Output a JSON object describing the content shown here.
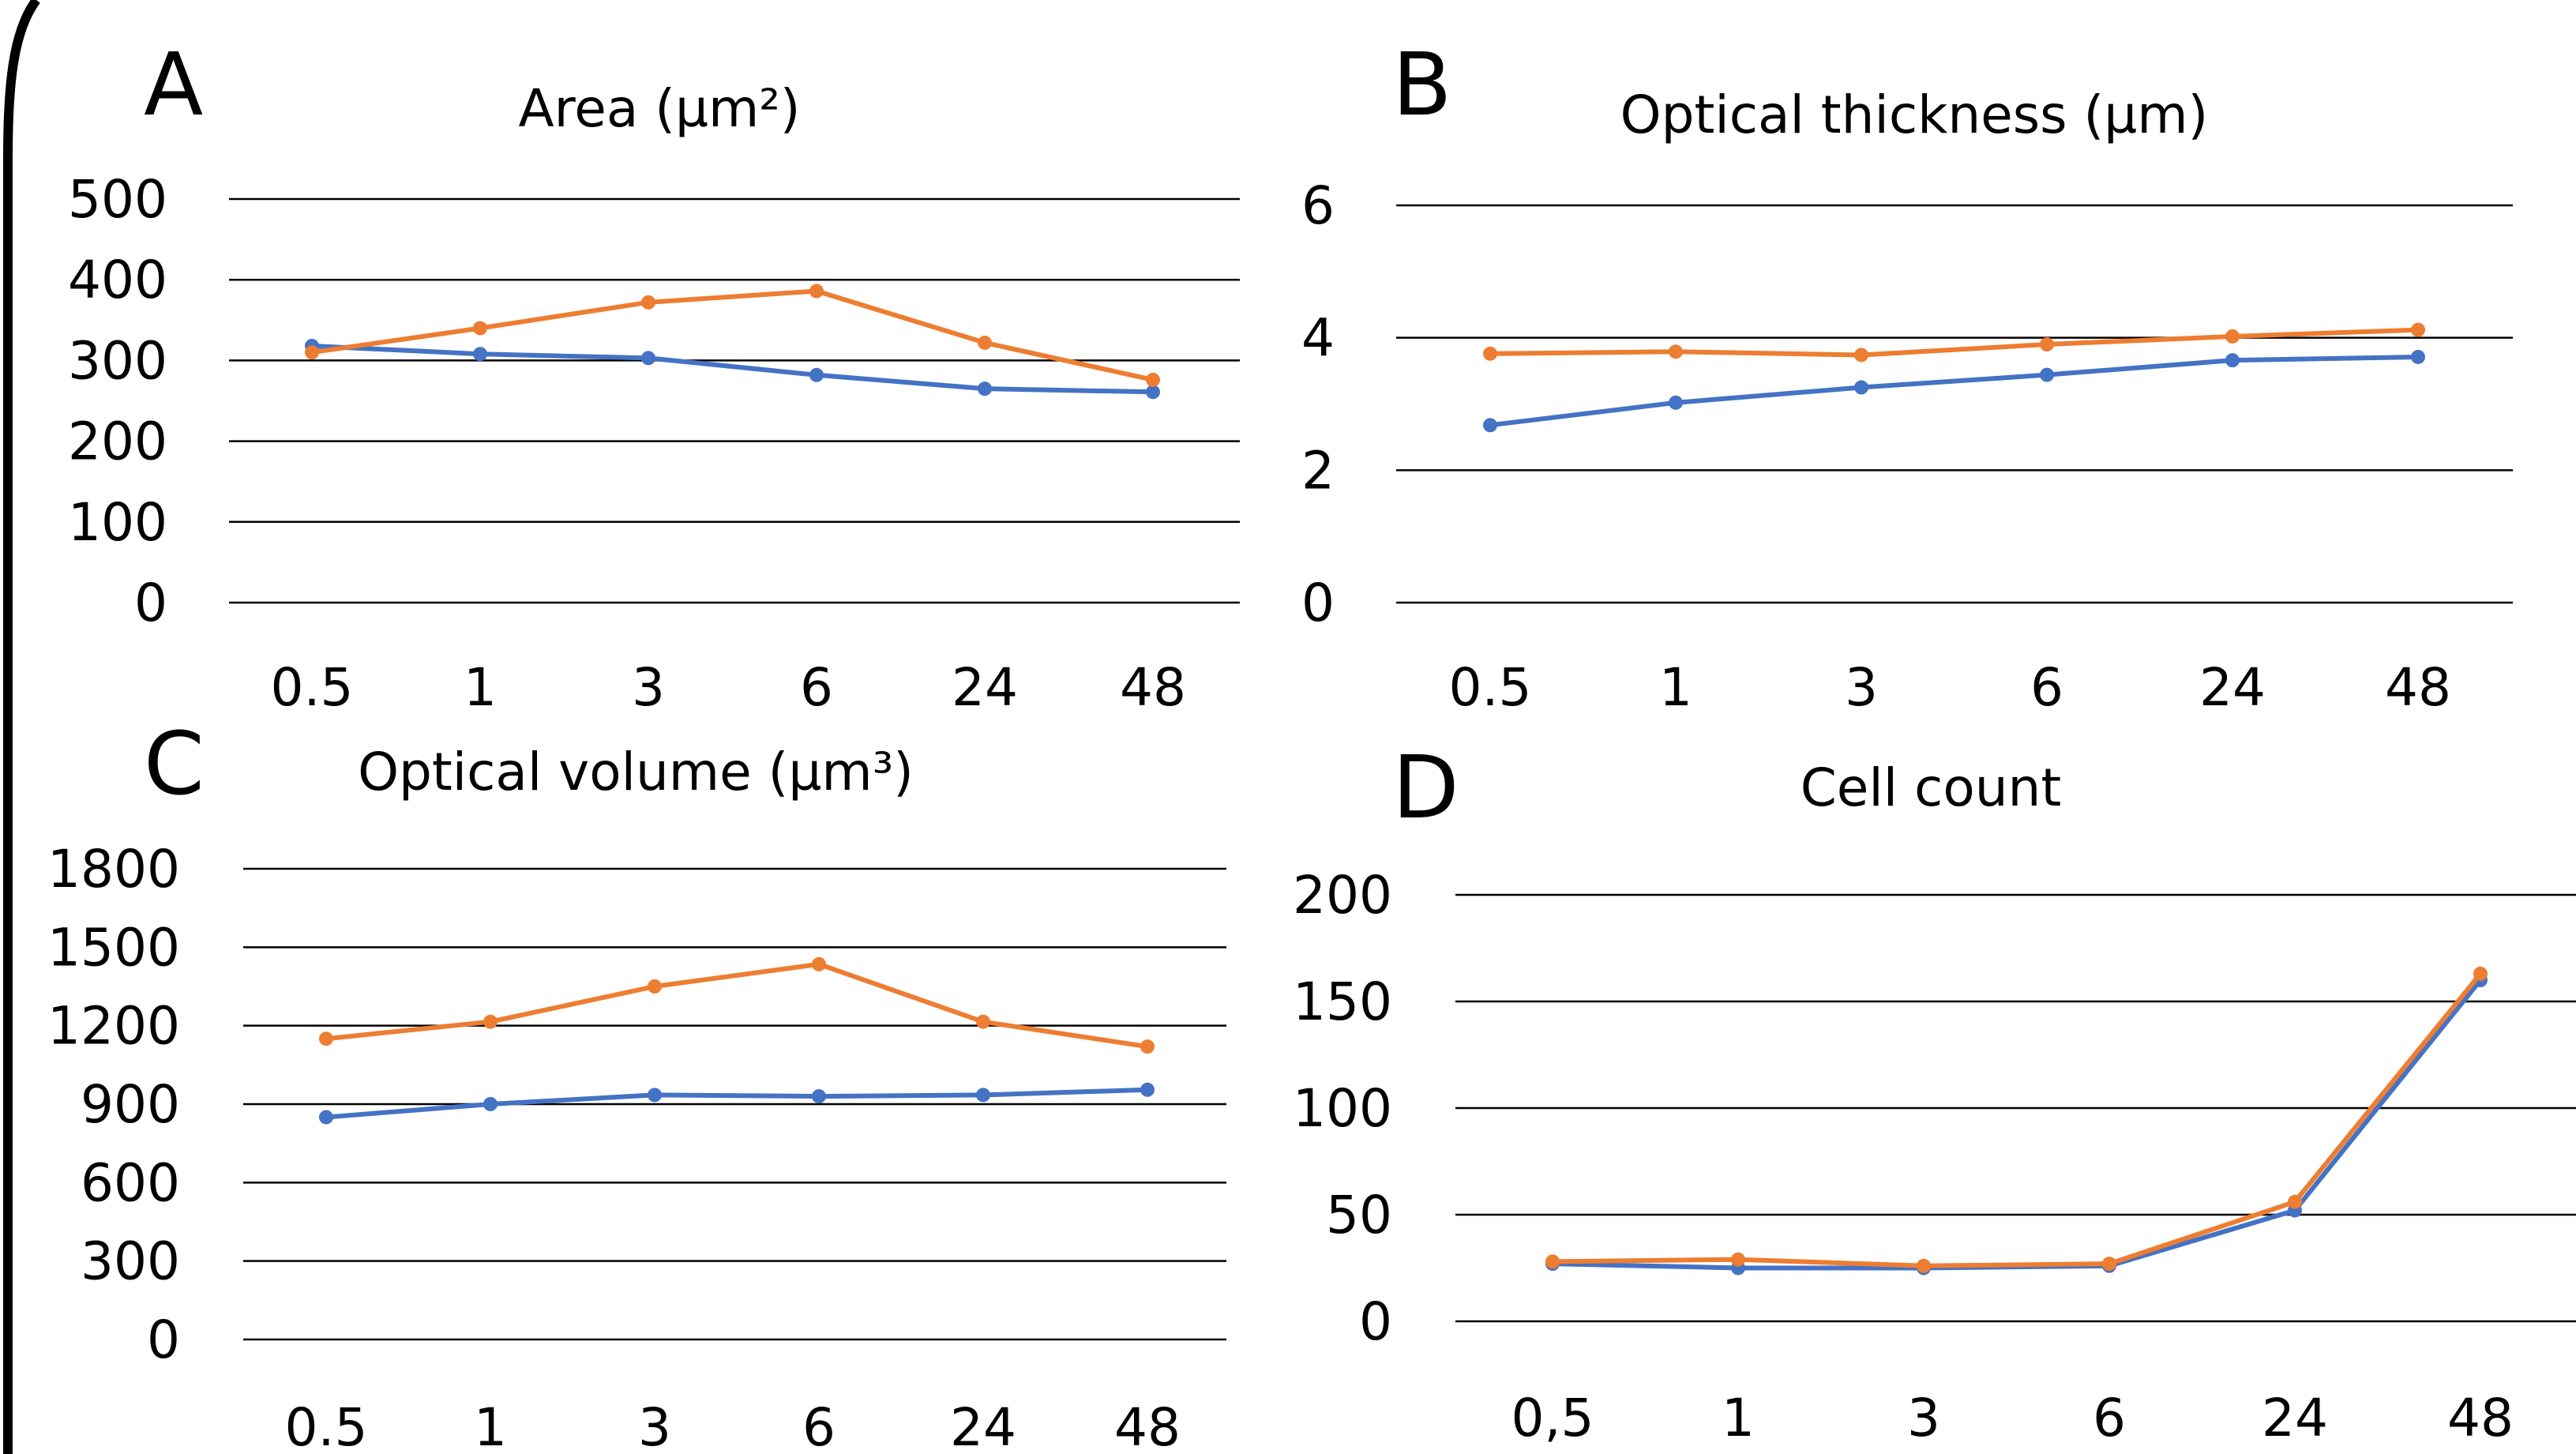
{
  "colors": {
    "series1": "#4472C4",
    "series2": "#ED7D31",
    "gridline": "#000000"
  },
  "chart_data": [
    {
      "panel": "A",
      "type": "line",
      "title": "Area (µm²)",
      "categories": [
        "0.5",
        "1",
        "3",
        "6",
        "24",
        "48"
      ],
      "ylim": [
        0,
        500
      ],
      "yticks": [
        "0",
        "100",
        "200",
        "300",
        "400",
        "500"
      ],
      "grid": true,
      "legend": "none",
      "series": [
        {
          "values": [
            318,
            308,
            303,
            282,
            265,
            261
          ]
        },
        {
          "values": [
            310,
            340,
            372,
            386,
            322,
            276
          ]
        }
      ]
    },
    {
      "panel": "B",
      "type": "line",
      "title": "Optical thickness (µm)",
      "categories": [
        "0.5",
        "1",
        "3",
        "6",
        "24",
        "48"
      ],
      "ylim": [
        0,
        6
      ],
      "yticks": [
        "0",
        "2",
        "4",
        "6"
      ],
      "grid": true,
      "legend": "none",
      "series": [
        {
          "values": [
            2.68,
            3.02,
            3.25,
            3.44,
            3.66,
            3.71
          ]
        },
        {
          "values": [
            3.76,
            3.79,
            3.74,
            3.9,
            4.02,
            4.12
          ]
        }
      ]
    },
    {
      "panel": "C",
      "type": "line",
      "title": "Optical volume (µm³)",
      "categories": [
        "0.5",
        "1",
        "3",
        "6",
        "24",
        "48"
      ],
      "ylim": [
        0,
        1800
      ],
      "yticks": [
        "0",
        "300",
        "600",
        "900",
        "1200",
        "1500",
        "1800"
      ],
      "grid": true,
      "legend": "none",
      "series": [
        {
          "values": [
            850,
            900,
            935,
            930,
            935,
            955
          ]
        },
        {
          "values": [
            1150,
            1215,
            1350,
            1435,
            1215,
            1120
          ]
        }
      ]
    },
    {
      "panel": "D",
      "type": "line",
      "title": "Cell count",
      "categories": [
        "0,5",
        "1",
        "3",
        "6",
        "24",
        "48"
      ],
      "ylim": [
        0,
        200
      ],
      "yticks": [
        "0",
        "50",
        "100",
        "150",
        "200"
      ],
      "grid": true,
      "legend": "none",
      "series": [
        {
          "values": [
            27,
            25,
            25,
            26,
            52,
            160
          ]
        },
        {
          "values": [
            28,
            29,
            26,
            27,
            56,
            163
          ]
        }
      ]
    }
  ]
}
